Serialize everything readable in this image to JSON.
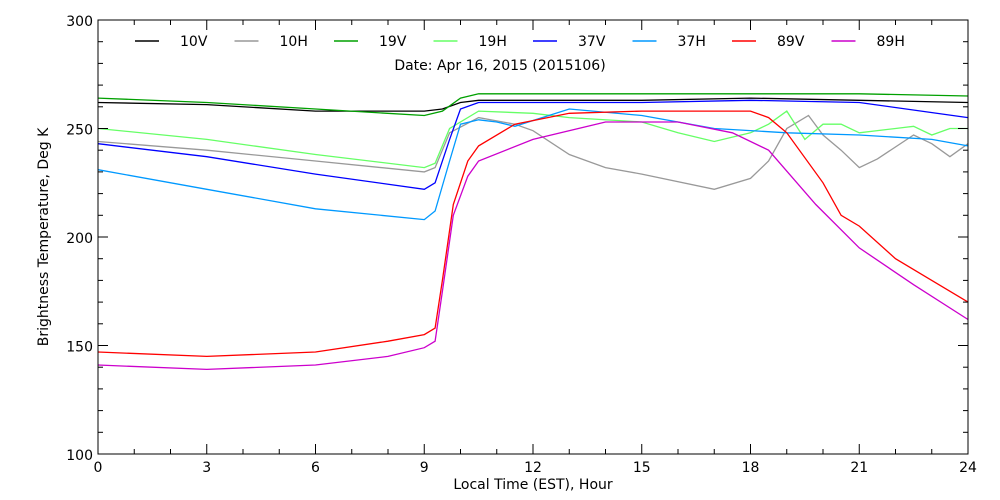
{
  "chart_data": {
    "type": "line",
    "title": "Date: Apr 16, 2015 (2015106)",
    "xlabel": "Local Time (EST), Hour",
    "ylabel": "Brightness Temperature, Deg K",
    "xlim": [
      0,
      24
    ],
    "ylim": [
      100,
      300
    ],
    "xticks": [
      "0",
      "3",
      "6",
      "9",
      "12",
      "15",
      "18",
      "21",
      "24"
    ],
    "yticks": [
      "100",
      "150",
      "200",
      "250",
      "300"
    ],
    "legend_position": "top",
    "series": [
      {
        "name": "10V",
        "color": "#000000",
        "x": [
          0,
          3,
          6,
          9,
          9.5,
          10,
          10.5,
          12,
          15,
          18,
          21,
          24
        ],
        "y": [
          262,
          261,
          258,
          258,
          259,
          262,
          263,
          263,
          263,
          264,
          263,
          262
        ]
      },
      {
        "name": "10H",
        "color": "#999999",
        "x": [
          0,
          3,
          6,
          9,
          9.3,
          9.7,
          10.5,
          11.5,
          12,
          13,
          14,
          15,
          17,
          18,
          18.5,
          19,
          19.6,
          20,
          20.5,
          21,
          21.5,
          22.5,
          23,
          23.5,
          24
        ],
        "y": [
          244,
          240,
          235,
          230,
          232,
          248,
          255,
          252,
          249,
          238,
          232,
          229,
          222,
          227,
          235,
          250,
          256,
          247,
          240,
          232,
          236,
          247,
          243,
          237,
          243
        ]
      },
      {
        "name": "19V",
        "color": "#00a000",
        "x": [
          0,
          3,
          6,
          9,
          9.5,
          10,
          10.5,
          12,
          15,
          18,
          21,
          24
        ],
        "y": [
          264,
          262,
          259,
          256,
          258,
          264,
          266,
          266,
          266,
          266,
          266,
          265
        ]
      },
      {
        "name": "19H",
        "color": "#66ff66",
        "x": [
          0,
          3,
          6,
          9,
          9.3,
          9.7,
          10.5,
          12,
          13,
          15,
          16,
          17,
          18,
          18.5,
          19,
          19.5,
          20,
          20.5,
          21,
          22,
          22.5,
          23,
          23.5,
          24
        ],
        "y": [
          250,
          245,
          238,
          232,
          234,
          250,
          258,
          257,
          255,
          253,
          248,
          244,
          248,
          252,
          258,
          245,
          252,
          252,
          248,
          250,
          251,
          247,
          250,
          250
        ]
      },
      {
        "name": "37V",
        "color": "#0000ff",
        "x": [
          0,
          3,
          6,
          9,
          9.3,
          9.7,
          10,
          10.5,
          11,
          15,
          18,
          21,
          24
        ],
        "y": [
          243,
          237,
          229,
          222,
          225,
          245,
          259,
          262,
          262,
          262,
          263,
          262,
          255
        ]
      },
      {
        "name": "37H",
        "color": "#0099ff",
        "x": [
          0,
          3,
          6,
          9,
          9.3,
          9.7,
          10,
          10.5,
          11,
          11.5,
          13,
          15,
          17,
          19,
          21,
          23,
          24
        ],
        "y": [
          231,
          222,
          213,
          208,
          212,
          235,
          252,
          254,
          253,
          251,
          259,
          256,
          250,
          248,
          247,
          245,
          242
        ]
      },
      {
        "name": "89V",
        "color": "#ff0000",
        "x": [
          0,
          3,
          6,
          8,
          9,
          9.3,
          9.5,
          9.8,
          10.2,
          10.5,
          11.5,
          13,
          15,
          18,
          18.5,
          19,
          20,
          20.5,
          21,
          22,
          23,
          24
        ],
        "y": [
          147,
          145,
          147,
          152,
          155,
          158,
          180,
          215,
          235,
          242,
          252,
          257,
          258,
          258,
          255,
          248,
          225,
          210,
          205,
          190,
          180,
          170
        ]
      },
      {
        "name": "89H",
        "color": "#cc00cc",
        "x": [
          0,
          3,
          6,
          8,
          9,
          9.3,
          9.5,
          9.8,
          10.2,
          10.5,
          12,
          14,
          16,
          17.5,
          18.5,
          19.8,
          21,
          22.5,
          24
        ],
        "y": [
          141,
          139,
          141,
          145,
          149,
          152,
          175,
          210,
          228,
          235,
          245,
          253,
          253,
          248,
          240,
          215,
          195,
          178,
          162
        ]
      }
    ]
  }
}
